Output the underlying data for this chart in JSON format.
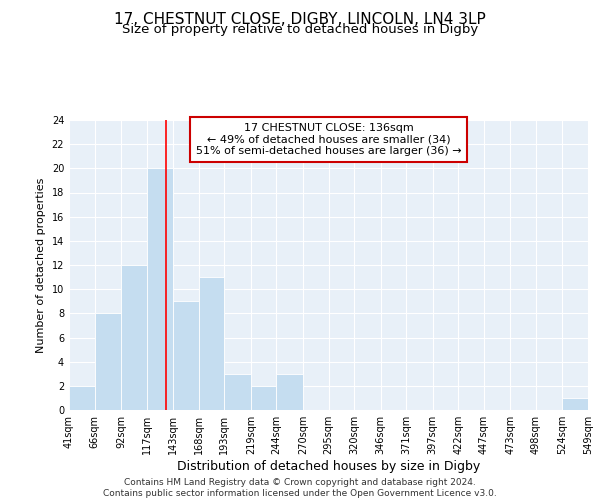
{
  "title": "17, CHESTNUT CLOSE, DIGBY, LINCOLN, LN4 3LP",
  "subtitle": "Size of property relative to detached houses in Digby",
  "xlabel": "Distribution of detached houses by size in Digby",
  "ylabel": "Number of detached properties",
  "bin_edges": [
    41,
    66,
    92,
    117,
    143,
    168,
    193,
    219,
    244,
    270,
    295,
    320,
    346,
    371,
    397,
    422,
    447,
    473,
    498,
    524,
    549
  ],
  "bin_labels": [
    "41sqm",
    "66sqm",
    "92sqm",
    "117sqm",
    "143sqm",
    "168sqm",
    "193sqm",
    "219sqm",
    "244sqm",
    "270sqm",
    "295sqm",
    "320sqm",
    "346sqm",
    "371sqm",
    "397sqm",
    "422sqm",
    "447sqm",
    "473sqm",
    "498sqm",
    "524sqm",
    "549sqm"
  ],
  "counts": [
    2,
    8,
    12,
    20,
    9,
    11,
    3,
    2,
    3,
    0,
    0,
    0,
    0,
    0,
    0,
    0,
    0,
    0,
    0,
    1
  ],
  "bar_color": "#c5ddf0",
  "property_line_x": 136,
  "property_line_color": "red",
  "annotation_text_line1": "17 CHESTNUT CLOSE: 136sqm",
  "annotation_text_line2": "← 49% of detached houses are smaller (34)",
  "annotation_text_line3": "51% of semi-detached houses are larger (36) →",
  "annotation_box_color": "white",
  "annotation_box_edge_color": "#cc0000",
  "ylim": [
    0,
    24
  ],
  "yticks": [
    0,
    2,
    4,
    6,
    8,
    10,
    12,
    14,
    16,
    18,
    20,
    22,
    24
  ],
  "background_color": "#e8f0f8",
  "grid_color": "#ffffff",
  "footer_text": "Contains HM Land Registry data © Crown copyright and database right 2024.\nContains public sector information licensed under the Open Government Licence v3.0.",
  "title_fontsize": 11,
  "subtitle_fontsize": 9.5,
  "xlabel_fontsize": 9,
  "ylabel_fontsize": 8,
  "tick_fontsize": 7,
  "annotation_fontsize": 8,
  "footer_fontsize": 6.5
}
